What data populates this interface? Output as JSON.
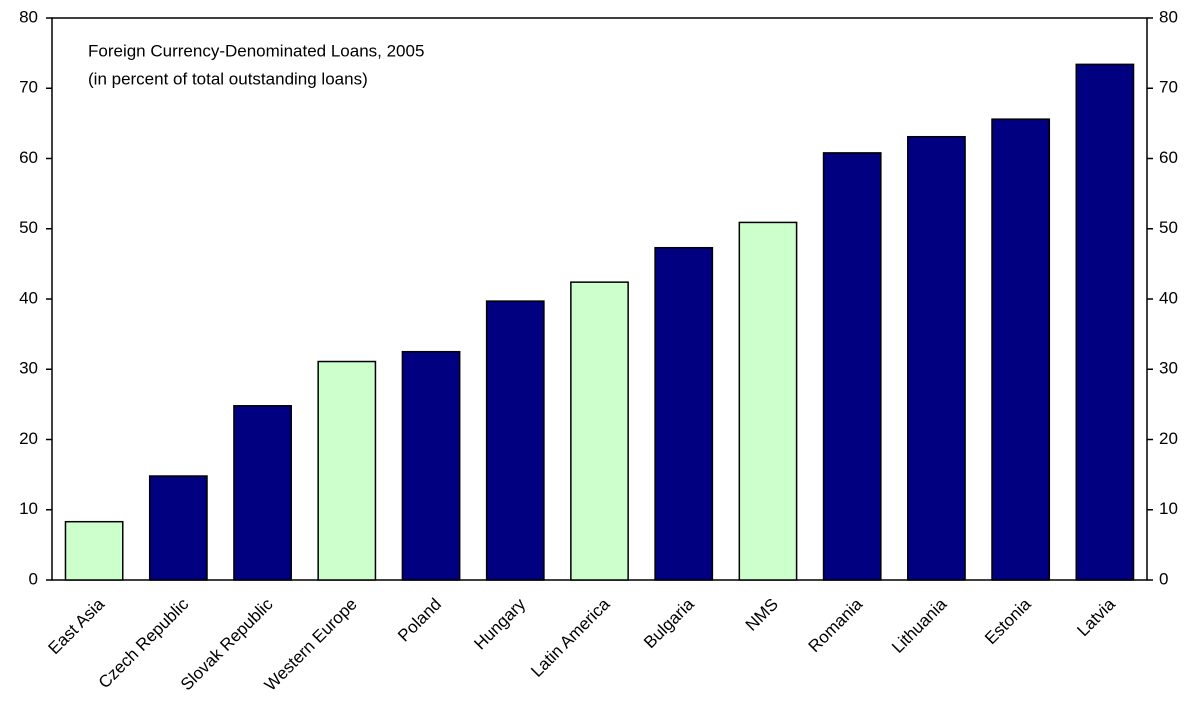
{
  "chart_data": {
    "type": "bar",
    "title": "Foreign Currency-Denominated Loans, 2005",
    "subtitle": "(in percent of total outstanding loans)",
    "categories": [
      "East Asia",
      "Czech Republic",
      "Slovak Republic",
      "Western Europe",
      "Poland",
      "Hungary",
      "Latin America",
      "Bulgaria",
      "NMS",
      "Romania",
      "Lithuania",
      "Estonia",
      "Latvia"
    ],
    "values": [
      8.3,
      14.8,
      24.8,
      31.1,
      32.5,
      39.7,
      42.4,
      47.3,
      50.9,
      60.8,
      63.1,
      65.6,
      73.4
    ],
    "colors": [
      "#ccffcc",
      "#000080",
      "#000080",
      "#ccffcc",
      "#000080",
      "#000080",
      "#ccffcc",
      "#000080",
      "#ccffcc",
      "#000080",
      "#000080",
      "#000080",
      "#000080"
    ],
    "ylim": [
      0,
      80
    ],
    "yticks": [
      0,
      10,
      20,
      30,
      40,
      50,
      60,
      70,
      80
    ],
    "y2lim": [
      0,
      80
    ],
    "y2ticks": [
      0,
      10,
      20,
      30,
      40,
      50,
      60,
      70,
      80
    ],
    "grid": false
  }
}
